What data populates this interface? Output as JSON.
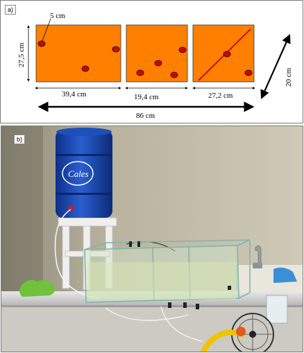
{
  "panel_a": {
    "label": "a)",
    "dim_hole": "5 cm",
    "dim_height_left": "27,5 cm",
    "dim_width_1": "39,4 cm",
    "dim_width_2": "19,4 cm",
    "dim_width_3": "27,2 cm",
    "dim_total": "86 cm",
    "dim_depth": "20 cm",
    "colors": {
      "panel": "#ff7f00",
      "hole": "#d90000",
      "diagonal": "#cc0000"
    }
  },
  "panel_b": {
    "label": "b)",
    "photo_description_icons": [
      "blue-water-tank",
      "glass-aquarium-tank",
      "stool",
      "valve",
      "faucet"
    ],
    "tank_brand_text": "Cales"
  }
}
